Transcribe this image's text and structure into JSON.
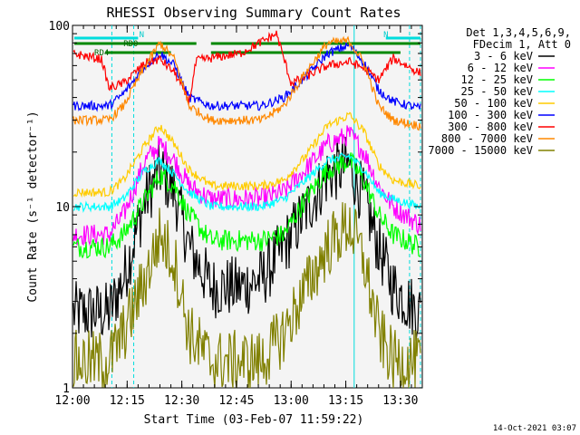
{
  "chart_data": {
    "type": "line",
    "title": "RHESSI Observing Summary Count Rates",
    "xlabel": "Start Time (03-Feb-07 11:59:22)",
    "ylabel": "Count Rate (s⁻¹ detector⁻¹)",
    "y_scale": "log",
    "ylim": [
      1,
      100
    ],
    "xlim_minutes": [
      0,
      96
    ],
    "x_ticks": [
      {
        "t": 0,
        "label": "12:00"
      },
      {
        "t": 15,
        "label": "12:15"
      },
      {
        "t": 30,
        "label": "12:30"
      },
      {
        "t": 45,
        "label": "12:45"
      },
      {
        "t": 60,
        "label": "13:00"
      },
      {
        "t": 75,
        "label": "13:15"
      },
      {
        "t": 90,
        "label": "13:30"
      }
    ],
    "y_ticks": [
      {
        "v": 1,
        "label": "1"
      },
      {
        "v": 10,
        "label": "10"
      },
      {
        "v": 100,
        "label": "100"
      }
    ],
    "legend_header": [
      "Det 1,3,4,5,6,9,",
      "FDecim 1, Att 0"
    ],
    "legend_placement": "right",
    "series": [
      {
        "name": "3 - 6 keV",
        "color": "#000000",
        "x_min": [
          10,
          14,
          20,
          24,
          28,
          32,
          38,
          46,
          52,
          58,
          66,
          70,
          76,
          80,
          84,
          88,
          95
        ],
        "values": [
          2.6,
          4,
          11,
          16,
          12,
          6,
          3.6,
          3.6,
          4,
          6,
          11,
          15,
          17,
          11,
          6,
          3.6,
          2.6
        ]
      },
      {
        "name": "6 - 12 keV",
        "color": "#ff00ff",
        "x_min": [
          0,
          10,
          14,
          20,
          24,
          28,
          32,
          38,
          46,
          52,
          58,
          64,
          70,
          76,
          80,
          84,
          88,
          95
        ],
        "values": [
          7,
          7,
          9,
          18,
          22,
          18,
          13,
          11,
          11,
          11,
          12,
          16,
          22,
          25,
          20,
          13,
          10,
          8
        ]
      },
      {
        "name": "12 - 25 keV",
        "color": "#00ff00",
        "x_min": [
          0,
          10,
          14,
          20,
          24,
          28,
          32,
          38,
          46,
          52,
          58,
          64,
          70,
          76,
          80,
          84,
          88,
          95
        ],
        "values": [
          6,
          6,
          7,
          11,
          15,
          13,
          9,
          6.5,
          6.5,
          6.5,
          7,
          11,
          16,
          18,
          14,
          9,
          7,
          6
        ]
      },
      {
        "name": "25 - 50 keV",
        "color": "#00ffff",
        "x_min": [
          0,
          10,
          14,
          20,
          24,
          28,
          32,
          38,
          46,
          52,
          58,
          64,
          70,
          76,
          80,
          84,
          88,
          95
        ],
        "values": [
          10,
          10,
          11,
          16,
          18,
          15,
          12,
          10,
          10,
          10,
          11,
          14,
          18,
          19,
          16,
          12,
          11,
          10
        ]
      },
      {
        "name": "50 - 100 keV",
        "color": "#ffcc00",
        "x_min": [
          0,
          10,
          14,
          20,
          24,
          28,
          32,
          38,
          46,
          52,
          58,
          64,
          70,
          76,
          80,
          84,
          88,
          95
        ],
        "values": [
          12,
          12,
          14,
          22,
          28,
          22,
          16,
          13,
          13,
          13,
          14,
          19,
          28,
          32,
          26,
          17,
          14,
          13
        ]
      },
      {
        "name": "100 - 300 keV",
        "color": "#0000ff",
        "x_min": [
          0,
          10,
          14,
          20,
          24,
          28,
          32,
          38,
          46,
          52,
          58,
          64,
          70,
          76,
          80,
          84,
          88,
          95
        ],
        "values": [
          36,
          36,
          42,
          60,
          70,
          60,
          40,
          36,
          36,
          36,
          40,
          52,
          70,
          78,
          62,
          44,
          38,
          35
        ]
      },
      {
        "name": "300 - 800 keV",
        "color": "#ff0000",
        "x_min": [
          0,
          8,
          10,
          14,
          20,
          24,
          28,
          32,
          34,
          46,
          56,
          60,
          64,
          70,
          76,
          80,
          84,
          88,
          95
        ],
        "values": [
          70,
          65,
          45,
          48,
          62,
          65,
          55,
          38,
          64,
          70,
          90,
          48,
          52,
          60,
          63,
          58,
          50,
          66,
          55
        ]
      },
      {
        "name": "800 - 7000 keV",
        "color": "#ff8800",
        "x_min": [
          0,
          10,
          14,
          20,
          24,
          28,
          32,
          38,
          46,
          52,
          58,
          64,
          70,
          76,
          80,
          84,
          88,
          95
        ],
        "values": [
          30,
          30,
          36,
          60,
          80,
          65,
          36,
          30,
          30,
          30,
          36,
          55,
          80,
          82,
          62,
          36,
          30,
          28
        ]
      },
      {
        "name": "7000 - 15000 keV",
        "color": "#808000",
        "x_min": [
          0,
          10,
          14,
          20,
          24,
          28,
          32,
          38,
          46,
          52,
          58,
          64,
          70,
          76,
          80,
          84,
          88,
          95
        ],
        "values": [
          1.4,
          1.4,
          2,
          4,
          7,
          5,
          2,
          1.4,
          1.4,
          1.4,
          2,
          3.5,
          6,
          8,
          5,
          2,
          1.4,
          1.4
        ]
      }
    ],
    "annotations": [
      {
        "label": "N",
        "color": "#00cccc"
      },
      {
        "label": "N",
        "color": "#00cccc"
      },
      {
        "label": "RD0",
        "color": "#006600"
      },
      {
        "label": "RD4",
        "color": "#006600"
      }
    ],
    "timestamp": "14-Oct-2021 03:07"
  }
}
